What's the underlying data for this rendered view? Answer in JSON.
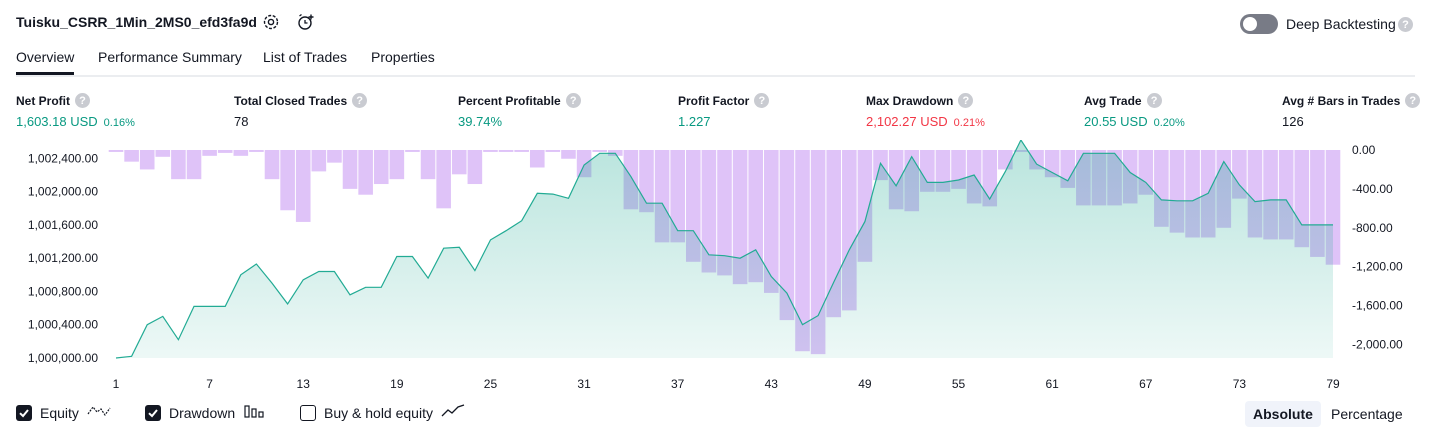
{
  "header": {
    "strategy_name": "Tuisku_CSRR_1Min_2MS0_efd3fa9d",
    "settings_icon": "settings-gear-icon",
    "add_alert_icon": "add-alert-clock-icon",
    "deep_backtesting_label": "Deep Backtesting",
    "deep_backtesting_enabled": false,
    "help_glyph": "?"
  },
  "tabs": [
    {
      "label": "Overview",
      "active": true
    },
    {
      "label": "Performance Summary",
      "active": false
    },
    {
      "label": "List of Trades",
      "active": false
    },
    {
      "label": "Properties",
      "active": false
    }
  ],
  "metrics": [
    {
      "label": "Net Profit",
      "value": "1,603.18 USD",
      "pct": "0.16%",
      "tone": "pos"
    },
    {
      "label": "Total Closed Trades",
      "value": "78",
      "pct": "",
      "tone": "plain"
    },
    {
      "label": "Percent Profitable",
      "value": "39.74%",
      "pct": "",
      "tone": "pos"
    },
    {
      "label": "Profit Factor",
      "value": "1.227",
      "pct": "",
      "tone": "pos"
    },
    {
      "label": "Max Drawdown",
      "value": "2,102.27 USD",
      "pct": "0.21%",
      "tone": "neg"
    },
    {
      "label": "Avg Trade",
      "value": "20.55 USD",
      "pct": "0.20%",
      "tone": "pos"
    },
    {
      "label": "Avg # Bars in Trades",
      "value": "126",
      "pct": "",
      "tone": "plain"
    }
  ],
  "legend": {
    "equity_label": "Equity",
    "equity_checked": true,
    "drawdown_label": "Drawdown",
    "drawdown_checked": true,
    "buyhold_label": "Buy & hold equity",
    "buyhold_checked": false,
    "absolute_label": "Absolute",
    "percentage_label": "Percentage",
    "selected_mode": "Absolute"
  },
  "colors": {
    "equity_line": "#22ab94",
    "equity_fill": "#22ab94",
    "drawdown_fill": "#d9b8f7",
    "positive": "#089981",
    "negative": "#f23645"
  },
  "chart_data": {
    "type": "area",
    "title": "",
    "x_ticks": [
      "1",
      "7",
      "13",
      "19",
      "25",
      "31",
      "37",
      "43",
      "49",
      "55",
      "61",
      "67",
      "73",
      "79"
    ],
    "left_axis": {
      "series": "Equity",
      "range": [
        1000000,
        1002500
      ],
      "tick_values": [
        1000000,
        1000400,
        1000800,
        1001200,
        1001600,
        1002000,
        1002400
      ],
      "tick_labels": [
        "1,000,000.00",
        "1,000,400.00",
        "1,000,800.00",
        "1,001,200.00",
        "1,001,600.00",
        "1,002,000.00",
        "1,002,400.00"
      ]
    },
    "right_axis": {
      "series": "Drawdown",
      "range": [
        -2150,
        0
      ],
      "tick_values": [
        0,
        -400,
        -800,
        -1200,
        -1600,
        -2000
      ],
      "tick_labels": [
        "0.00",
        "-400.00",
        "-800.00",
        "-1,200.00",
        "-1,600.00",
        "-2,000.00"
      ]
    },
    "series": [
      {
        "name": "Equity",
        "x": [
          1,
          2,
          3,
          4,
          5,
          6,
          7,
          8,
          9,
          10,
          11,
          12,
          13,
          14,
          15,
          16,
          17,
          18,
          19,
          20,
          21,
          22,
          23,
          24,
          25,
          26,
          27,
          28,
          29,
          30,
          31,
          32,
          33,
          34,
          35,
          36,
          37,
          38,
          39,
          40,
          41,
          42,
          43,
          44,
          45,
          46,
          47,
          48,
          49,
          50,
          51,
          52,
          53,
          54,
          55,
          56,
          57,
          58,
          59,
          60,
          61,
          62,
          63,
          64,
          65,
          66,
          67,
          68,
          69,
          70,
          71,
          72,
          73,
          74,
          75,
          76,
          77,
          78,
          79
        ],
        "values": [
          1000000,
          1000020,
          1000400,
          1000500,
          1000220,
          1000620,
          1000620,
          1000620,
          1001000,
          1001130,
          1000900,
          1000650,
          1000940,
          1001040,
          1001040,
          1000760,
          1000850,
          1000850,
          1001220,
          1001220,
          1000960,
          1001320,
          1001330,
          1001050,
          1001420,
          1001530,
          1001650,
          1001980,
          1001970,
          1001920,
          1002320,
          1002460,
          1002460,
          1002180,
          1001860,
          1001860,
          1001530,
          1001530,
          1001240,
          1001230,
          1001200,
          1001300,
          1000980,
          1000780,
          1000400,
          1000510,
          1000910,
          1001300,
          1001640,
          1002340,
          1002070,
          1002420,
          1002110,
          1002110,
          1002140,
          1002200,
          1001910,
          1002240,
          1002620,
          1002330,
          1002230,
          1002130,
          1002460,
          1002460,
          1002460,
          1002230,
          1002110,
          1001900,
          1001890,
          1001890,
          1001980,
          1002360,
          1002080,
          1001880,
          1001900,
          1001900,
          1001600,
          1001600,
          1001600
        ]
      },
      {
        "name": "Drawdown",
        "x": [
          1,
          2,
          3,
          4,
          5,
          6,
          7,
          8,
          9,
          10,
          11,
          12,
          13,
          14,
          15,
          16,
          17,
          18,
          19,
          20,
          21,
          22,
          23,
          24,
          25,
          26,
          27,
          28,
          29,
          30,
          31,
          32,
          33,
          34,
          35,
          36,
          37,
          38,
          39,
          40,
          41,
          42,
          43,
          44,
          45,
          46,
          47,
          48,
          49,
          50,
          51,
          52,
          53,
          54,
          55,
          56,
          57,
          58,
          59,
          60,
          61,
          62,
          63,
          64,
          65,
          66,
          67,
          68,
          69,
          70,
          71,
          72,
          73,
          74,
          75,
          76,
          77,
          78,
          79
        ],
        "values": [
          -20,
          -120,
          -200,
          -70,
          -300,
          -300,
          -60,
          -30,
          -60,
          -20,
          -300,
          -620,
          -740,
          -220,
          -130,
          -400,
          -460,
          -350,
          -300,
          -20,
          -300,
          -600,
          -250,
          -350,
          -20,
          -20,
          -20,
          -180,
          -20,
          -90,
          -280,
          -20,
          -60,
          -610,
          -640,
          -950,
          -950,
          -1150,
          -1260,
          -1290,
          -1380,
          -1360,
          -1470,
          -1750,
          -2070,
          -2100,
          -1720,
          -1650,
          -1150,
          -310,
          -610,
          -630,
          -430,
          -430,
          -400,
          -550,
          -580,
          -200,
          -20,
          -200,
          -280,
          -390,
          -570,
          -570,
          -570,
          -550,
          -460,
          -790,
          -850,
          -900,
          -900,
          -800,
          -500,
          -900,
          -920,
          -920,
          -1000,
          -1100,
          -1180
        ]
      }
    ]
  }
}
